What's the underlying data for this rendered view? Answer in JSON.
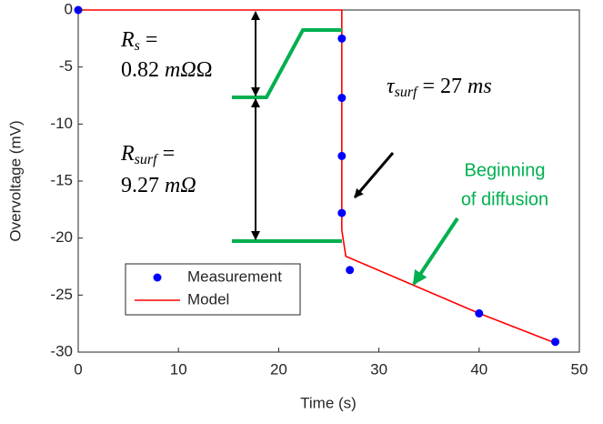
{
  "chart_data": {
    "type": "line",
    "xlabel": "Time (s)",
    "ylabel": "Overvoltage (mV)",
    "xlim": [
      0,
      50
    ],
    "ylim": [
      -30,
      0
    ],
    "xticks": [
      0,
      10,
      20,
      30,
      40,
      50
    ],
    "yticks": [
      0,
      -5,
      -10,
      -15,
      -20,
      -25,
      -30
    ],
    "legend": "lower-left",
    "series": [
      {
        "name": "Measurement",
        "color": "#0000ff",
        "style": "markers",
        "x": [
          0,
          26.3,
          26.3,
          26.3,
          26.3,
          27.1,
          40,
          47.6
        ],
        "values": [
          0,
          -2.5,
          -7.7,
          -12.8,
          -17.8,
          -22.8,
          -26.6,
          -29.1
        ]
      },
      {
        "name": "Model",
        "color": "#ff0000",
        "style": "line",
        "x": [
          0,
          26.3,
          26.3,
          26.7,
          40,
          47.6
        ],
        "values": [
          0,
          0,
          -19.3,
          -21.6,
          -26.6,
          -29.2
        ]
      }
    ],
    "annotations": {
      "rs": [
        {
          "main": "R",
          "sub": "s",
          "tail": " ="
        },
        {
          "main": "0.82 ",
          "unit": "mΩ"
        }
      ],
      "rsurf": [
        {
          "main": "R",
          "sub": "surf",
          "tail": " ="
        },
        {
          "main": "9.27 ",
          "unit": "mΩ"
        }
      ],
      "tau": {
        "main": "τ",
        "sub": "surf",
        "tail": " = 27 ",
        "unit": "ms"
      },
      "diffusion": [
        "Beginning",
        "of diffusion"
      ]
    }
  }
}
